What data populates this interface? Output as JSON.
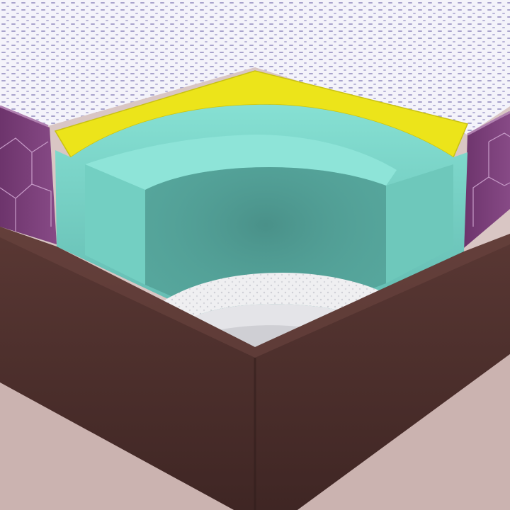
{
  "image": {
    "subject": "mattress-corner-cutaway",
    "palette": {
      "background": "#d9c6c4",
      "top_fabric": "#f4f3fa",
      "fabric_dots": "#a8a3cc",
      "side_fabric": "#7a3f78",
      "gusset_lines": "#c79bc8",
      "foam_yellow": "#ece41a",
      "foam_mint": "#7fd9cc",
      "foam_mint_shadow": "#4f9a92",
      "base_fabric": "#f0f0f2",
      "border_brown": "#4b2e2b"
    }
  }
}
